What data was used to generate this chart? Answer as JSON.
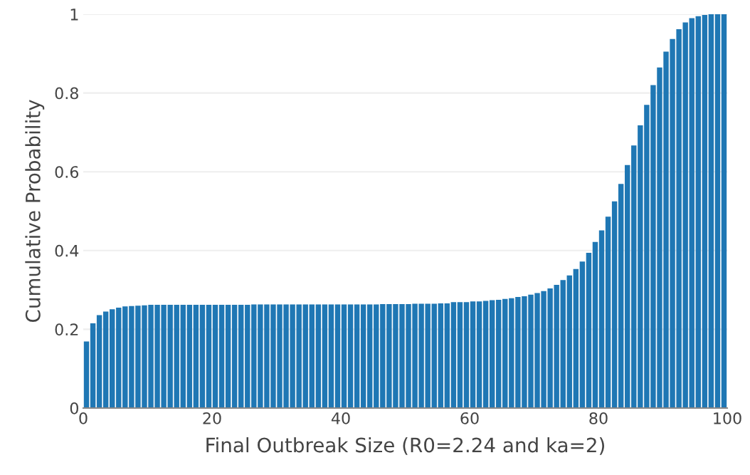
{
  "chart_data": {
    "type": "bar",
    "xlabel": "Final Outbreak Size (R0=2.24 and ka=2)",
    "ylabel": "Cumulative Probability",
    "x": [
      0.5,
      1.5,
      2.5,
      3.5,
      4.5,
      5.5,
      6.5,
      7.5,
      8.5,
      9.5,
      10.5,
      11.5,
      12.5,
      13.5,
      14.5,
      15.5,
      16.5,
      17.5,
      18.5,
      19.5,
      20.5,
      21.5,
      22.5,
      23.5,
      24.5,
      25.5,
      26.5,
      27.5,
      28.5,
      29.5,
      30.5,
      31.5,
      32.5,
      33.5,
      34.5,
      35.5,
      36.5,
      37.5,
      38.5,
      39.5,
      40.5,
      41.5,
      42.5,
      43.5,
      44.5,
      45.5,
      46.5,
      47.5,
      48.5,
      49.5,
      50.5,
      51.5,
      52.5,
      53.5,
      54.5,
      55.5,
      56.5,
      57.5,
      58.5,
      59.5,
      60.5,
      61.5,
      62.5,
      63.5,
      64.5,
      65.5,
      66.5,
      67.5,
      68.5,
      69.5,
      70.5,
      71.5,
      72.5,
      73.5,
      74.5,
      75.5,
      76.5,
      77.5,
      78.5,
      79.5,
      80.5,
      81.5,
      82.5,
      83.5,
      84.5,
      85.5,
      86.5,
      87.5,
      88.5,
      89.5,
      90.5,
      91.5,
      92.5,
      93.5,
      94.5,
      95.5,
      96.5,
      97.5,
      98.5,
      99.5
    ],
    "values": [
      0.169,
      0.215,
      0.236,
      0.245,
      0.251,
      0.255,
      0.258,
      0.259,
      0.26,
      0.261,
      0.262,
      0.262,
      0.262,
      0.262,
      0.262,
      0.262,
      0.262,
      0.262,
      0.262,
      0.262,
      0.262,
      0.262,
      0.262,
      0.262,
      0.262,
      0.262,
      0.263,
      0.263,
      0.263,
      0.263,
      0.263,
      0.263,
      0.263,
      0.263,
      0.263,
      0.263,
      0.263,
      0.263,
      0.263,
      0.263,
      0.263,
      0.263,
      0.263,
      0.263,
      0.263,
      0.263,
      0.264,
      0.264,
      0.264,
      0.264,
      0.264,
      0.265,
      0.265,
      0.265,
      0.265,
      0.266,
      0.266,
      0.269,
      0.269,
      0.269,
      0.271,
      0.271,
      0.272,
      0.274,
      0.275,
      0.277,
      0.279,
      0.282,
      0.284,
      0.288,
      0.292,
      0.297,
      0.304,
      0.313,
      0.325,
      0.337,
      0.353,
      0.372,
      0.394,
      0.422,
      0.451,
      0.486,
      0.525,
      0.569,
      0.617,
      0.667,
      0.718,
      0.77,
      0.82,
      0.865,
      0.905,
      0.937,
      0.962,
      0.979,
      0.99,
      0.995,
      0.998,
      1.0,
      1.0,
      1.0
    ],
    "color": "#1f77b4",
    "xlim": [
      0,
      100
    ],
    "xticks": [
      0,
      20,
      40,
      60,
      80,
      100
    ],
    "ylim": [
      0,
      1
    ],
    "yticks": [
      0,
      0.2,
      0.4,
      0.6,
      0.8,
      1
    ],
    "grid": "y"
  }
}
